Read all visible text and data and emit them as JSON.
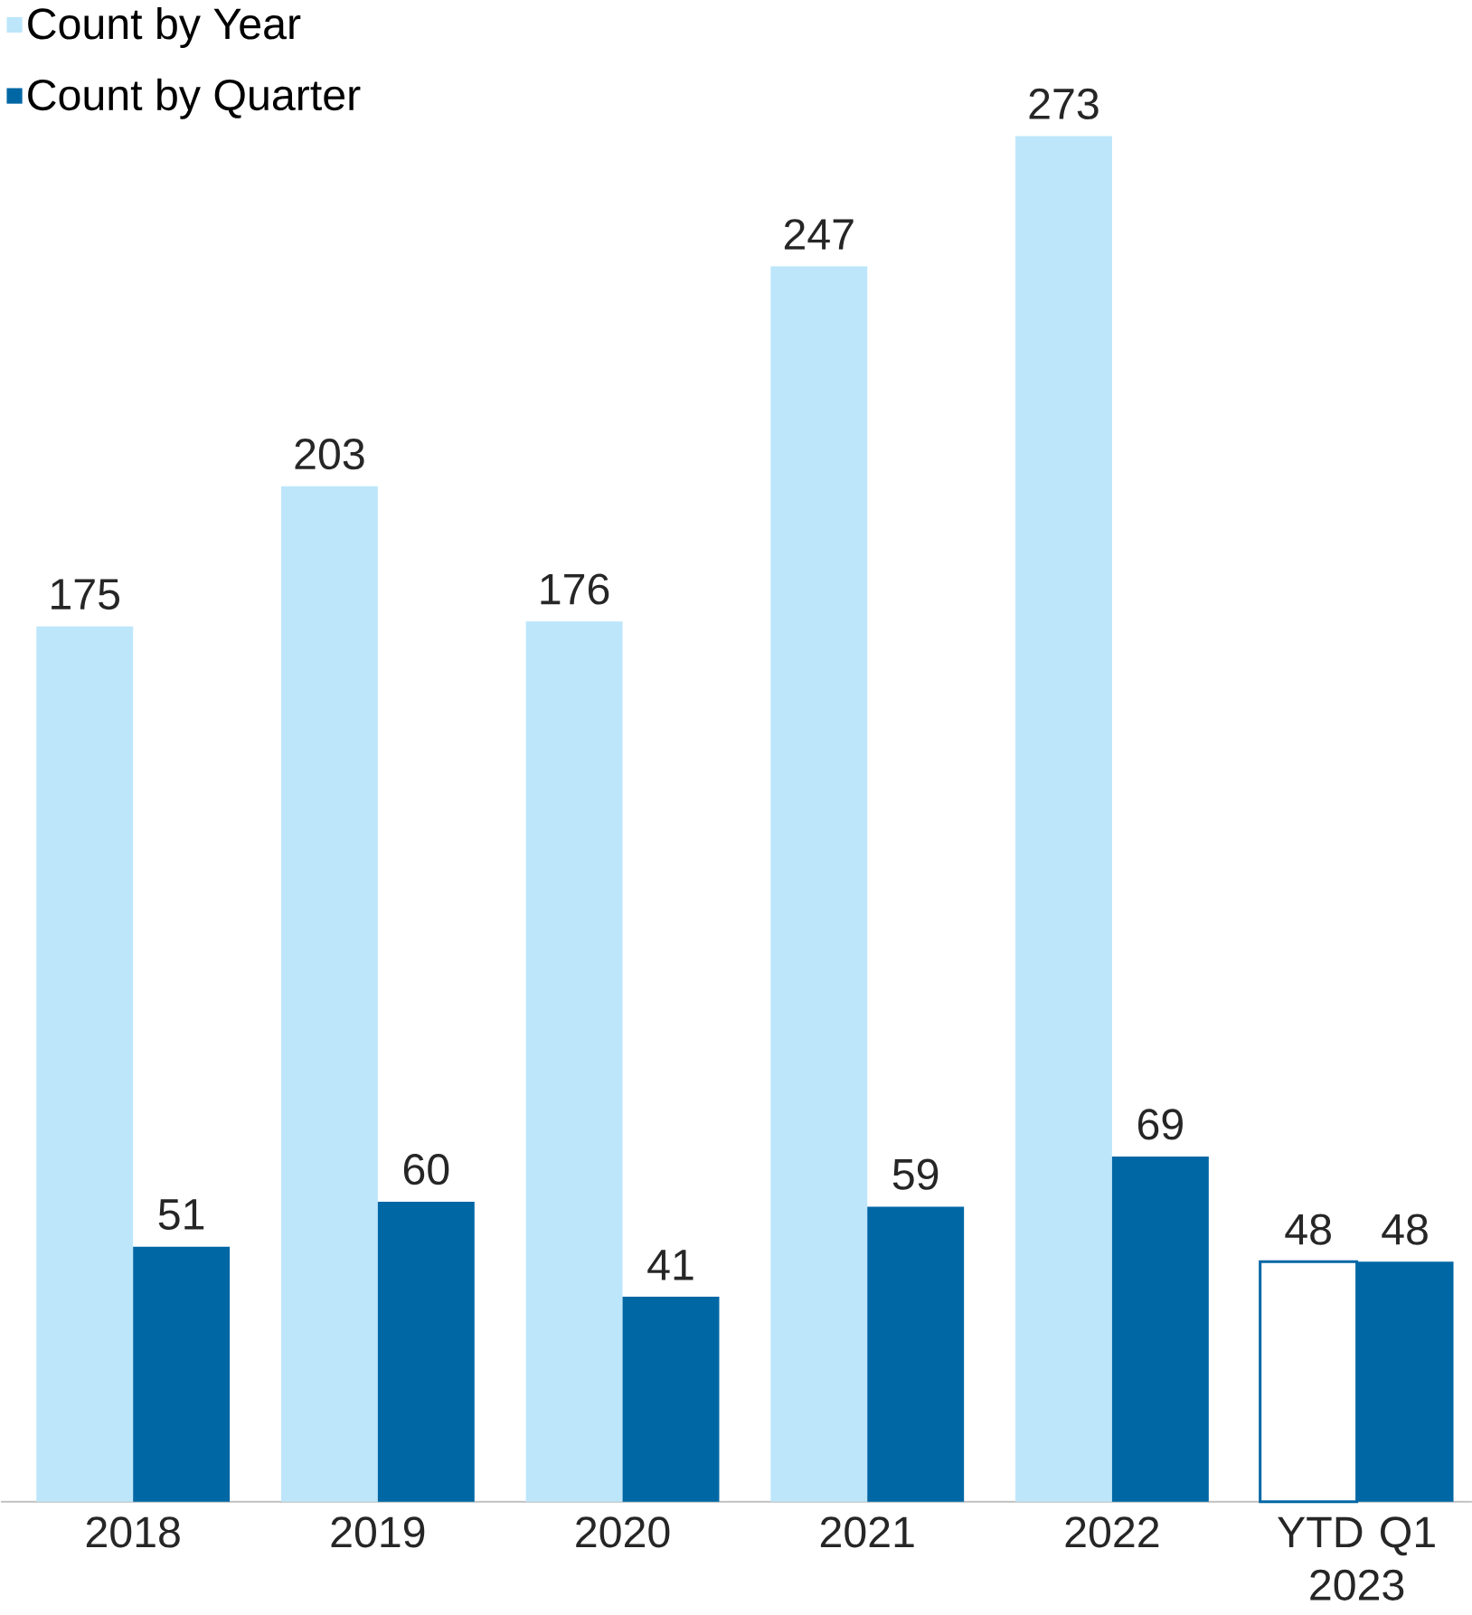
{
  "chart_data": {
    "type": "bar",
    "categories": [
      "2018",
      "2019",
      "2020",
      "2021",
      "2022",
      "YTD Q1 2023"
    ],
    "series": [
      {
        "name": "Count by Year",
        "color": "#bde6fb",
        "colors": [
          "#bde6fb",
          "#bde6fb",
          "#bde6fb",
          "#bde6fb",
          "#bde6fb",
          "#ffffff"
        ],
        "values": [
          175,
          203,
          176,
          247,
          273,
          48
        ]
      },
      {
        "name": "Count by Quarter",
        "color": "#0067a5",
        "values": [
          51,
          60,
          41,
          59,
          69,
          48
        ]
      }
    ],
    "data_labels": true,
    "legend": "top left"
  }
}
